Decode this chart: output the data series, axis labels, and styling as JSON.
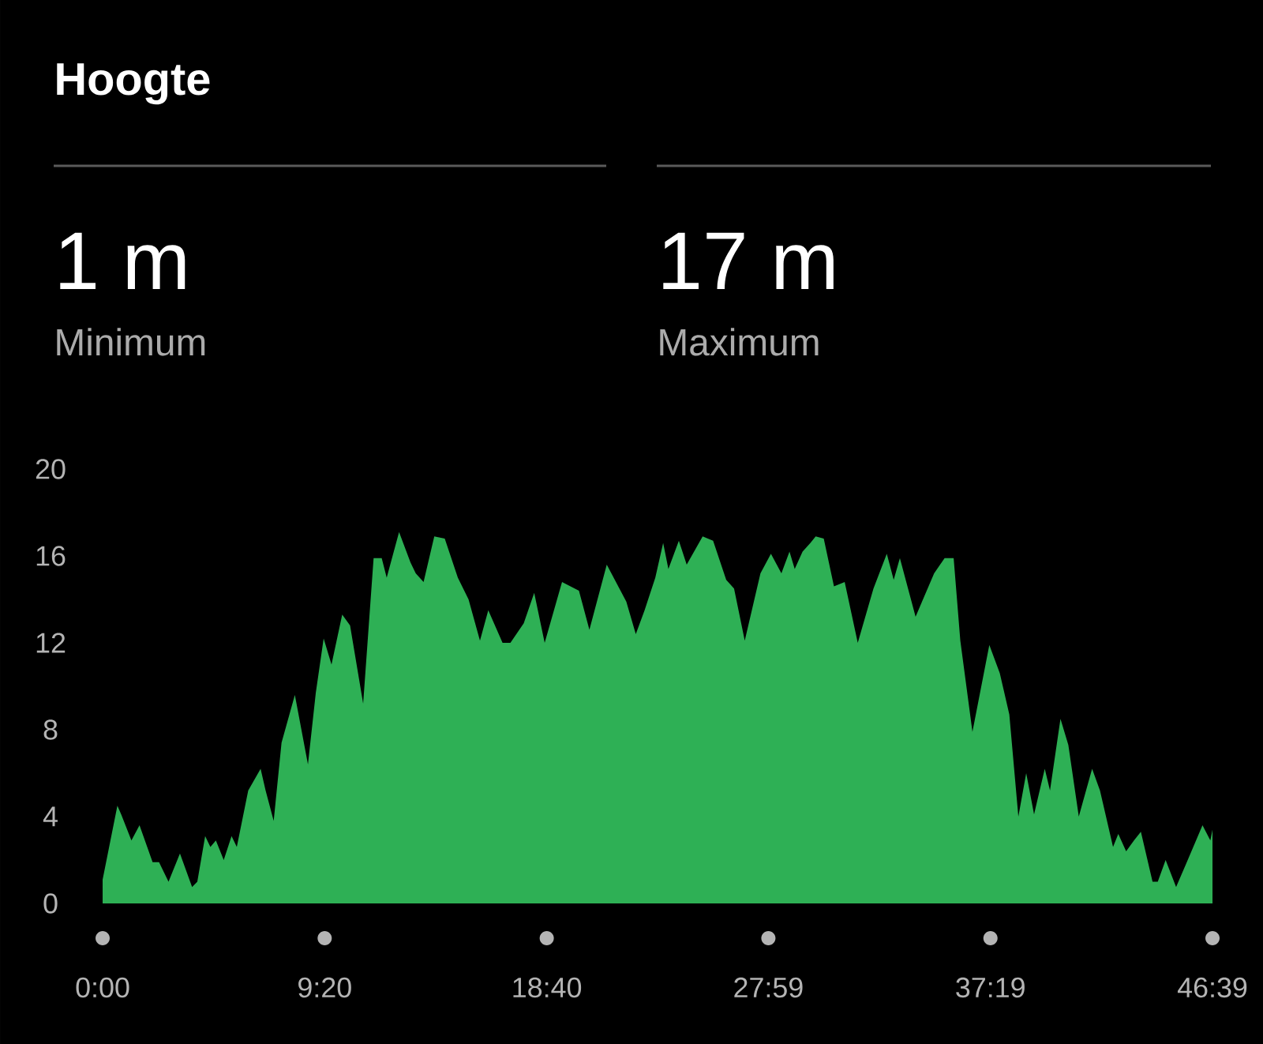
{
  "chart_data": {
    "type": "area",
    "title": "Hoogte",
    "annotations": [
      "1 m",
      "Minimum",
      "17 m",
      "Maximum"
    ],
    "x": [
      0,
      0.62,
      0.78,
      1.21,
      1.55,
      2.1,
      2.37,
      2.77,
      3.25,
      3.76,
      3.98,
      4.31,
      4.53,
      4.76,
      5.09,
      5.42,
      5.64,
      6.12,
      6.64,
      6.85,
      7.19,
      7.52,
      8.08,
      8.63,
      8.96,
      9.29,
      9.62,
      10.07,
      10.4,
      10.95,
      11.39,
      11.73,
      11.94,
      12.46,
      12.94,
      13.16,
      13.49,
      13.94,
      14.38,
      14.93,
      15.38,
      15.86,
      16.21,
      16.81,
      17.14,
      17.7,
      18.14,
      18.58,
      19.31,
      20.02,
      20.46,
      21.19,
      22.01,
      22.41,
      22.78,
      23.23,
      23.56,
      23.78,
      24.22,
      24.55,
      25.22,
      25.66,
      26.21,
      26.54,
      26.99,
      27.65,
      28.09,
      28.53,
      28.87,
      29.09,
      29.42,
      29.75,
      29.97,
      30.31,
      30.74,
      31.19,
      31.74,
      32.4,
      32.96,
      33.25,
      33.51,
      34.17,
      34.95,
      35.39,
      35.77,
      36.05,
      36.56,
      37.27,
      37.71,
      38.11,
      38.49,
      38.82,
      39.15,
      39.6,
      39.82,
      40.26,
      40.59,
      41.03,
      41.59,
      41.92,
      42.47,
      42.69,
      43.02,
      43.35,
      43.64,
      44.13,
      44.35,
      44.68,
      45.12,
      45.57,
      46.23,
      46.56,
      46.65
    ],
    "values": [
      1.1,
      4.5,
      4.1,
      2.9,
      3.6,
      1.9,
      1.9,
      1.0,
      2.3,
      0.75,
      1.0,
      3.1,
      2.6,
      2.9,
      2.0,
      3.1,
      2.6,
      5.2,
      6.2,
      5.2,
      3.8,
      7.4,
      9.6,
      6.4,
      9.7,
      12.2,
      11.0,
      13.3,
      12.8,
      9.2,
      15.9,
      15.9,
      15.0,
      17.1,
      15.7,
      15.2,
      14.8,
      16.9,
      16.8,
      15.0,
      14.0,
      12.1,
      13.5,
      12.0,
      12.0,
      12.9,
      14.3,
      12.0,
      14.8,
      14.4,
      12.6,
      15.6,
      13.9,
      12.4,
      13.5,
      15.0,
      16.6,
      15.4,
      16.7,
      15.6,
      16.9,
      16.7,
      14.9,
      14.5,
      12.1,
      15.2,
      16.1,
      15.2,
      16.2,
      15.4,
      16.2,
      16.6,
      16.9,
      16.8,
      14.6,
      14.8,
      12.0,
      14.5,
      16.1,
      14.9,
      15.9,
      13.2,
      15.2,
      15.9,
      15.9,
      12.1,
      7.9,
      11.9,
      10.6,
      8.7,
      4.0,
      6.0,
      4.1,
      6.2,
      5.2,
      8.5,
      7.3,
      4.0,
      6.2,
      5.2,
      2.6,
      3.2,
      2.4,
      2.9,
      3.3,
      1.0,
      1.0,
      2.0,
      0.75,
      1.9,
      3.6,
      2.9,
      3.4
    ],
    "color": "#2eb055",
    "xlim": [
      0,
      46.65
    ],
    "xticks": [
      {
        "value": 0,
        "label": "0:00"
      },
      {
        "value": 9.333,
        "label": "9:20"
      },
      {
        "value": 18.667,
        "label": "18:40"
      },
      {
        "value": 27.983,
        "label": "27:59"
      },
      {
        "value": 37.317,
        "label": "37:19"
      },
      {
        "value": 46.65,
        "label": "46:39"
      }
    ],
    "ylim": [
      0,
      20
    ],
    "yticks": [
      0,
      4,
      8,
      12,
      16,
      20
    ]
  }
}
